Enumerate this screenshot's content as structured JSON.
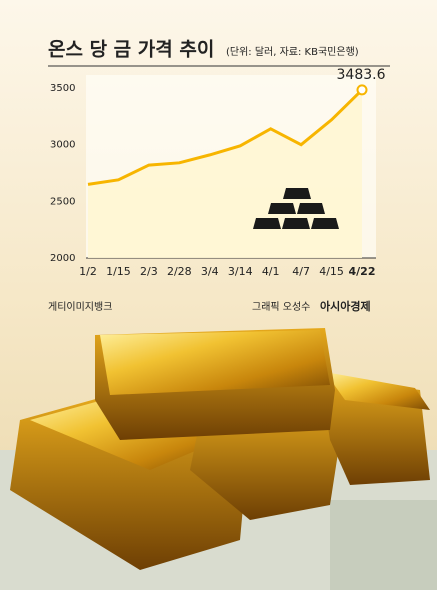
{
  "chart_data": {
    "type": "line",
    "title": "온스 당 금 가격 추이",
    "subtitle": "(단위: 달러, 자료: KB국민은행)",
    "categories": [
      "1/2",
      "1/15",
      "2/3",
      "2/28",
      "3/4",
      "3/14",
      "4/1",
      "4/7",
      "4/15",
      "4/22"
    ],
    "values": [
      2650,
      2690,
      2820,
      2840,
      2910,
      2990,
      3140,
      3000,
      3220,
      3483.6
    ],
    "color": "#f7b500",
    "ylim": [
      2000,
      3600
    ],
    "yticks": [
      2000,
      2500,
      3000,
      3500
    ],
    "grid": false,
    "annotations": [
      "게티이미지뱅크",
      "그래픽 오성수",
      "아시아경제"
    ]
  }
}
